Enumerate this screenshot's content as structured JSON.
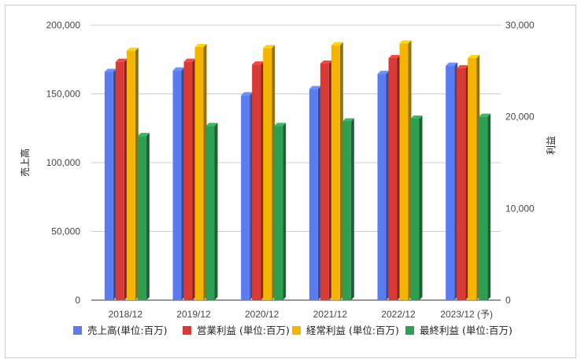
{
  "chart_data": {
    "type": "bar",
    "categories": [
      "2018/12",
      "2019/12",
      "2020/12",
      "2021/12",
      "2022/12",
      "2023/12 (予)"
    ],
    "series": [
      {
        "name": "売上高(単位:百万)",
        "axis": "left",
        "color": "#5b7bf0",
        "values": [
          166000,
          167000,
          149000,
          153500,
          164500,
          170500
        ]
      },
      {
        "name": "営業利益 (単位:百万)",
        "axis": "right",
        "color": "#d93a35",
        "values": [
          26000,
          26000,
          25700,
          25800,
          26400,
          25300
        ]
      },
      {
        "name": "経常利益 (単位:百万)",
        "axis": "right",
        "color": "#f3b500",
        "values": [
          27200,
          27600,
          27500,
          27800,
          28000,
          26400
        ]
      },
      {
        "name": "最終利益 (単位:百万)",
        "axis": "right",
        "color": "#2e9e52",
        "values": [
          17900,
          19000,
          19000,
          19500,
          19800,
          20000
        ]
      }
    ],
    "ylabel": "売上高",
    "y2label": "利益",
    "ylim": [
      0,
      200000
    ],
    "y2lim": [
      0,
      30000
    ],
    "yticks": [
      "0",
      "50,000",
      "100,000",
      "150,000",
      "200,000"
    ],
    "y2ticks": [
      "0",
      "10,000",
      "20,000",
      "30,000"
    ],
    "grid": true,
    "legend": "bottom"
  }
}
